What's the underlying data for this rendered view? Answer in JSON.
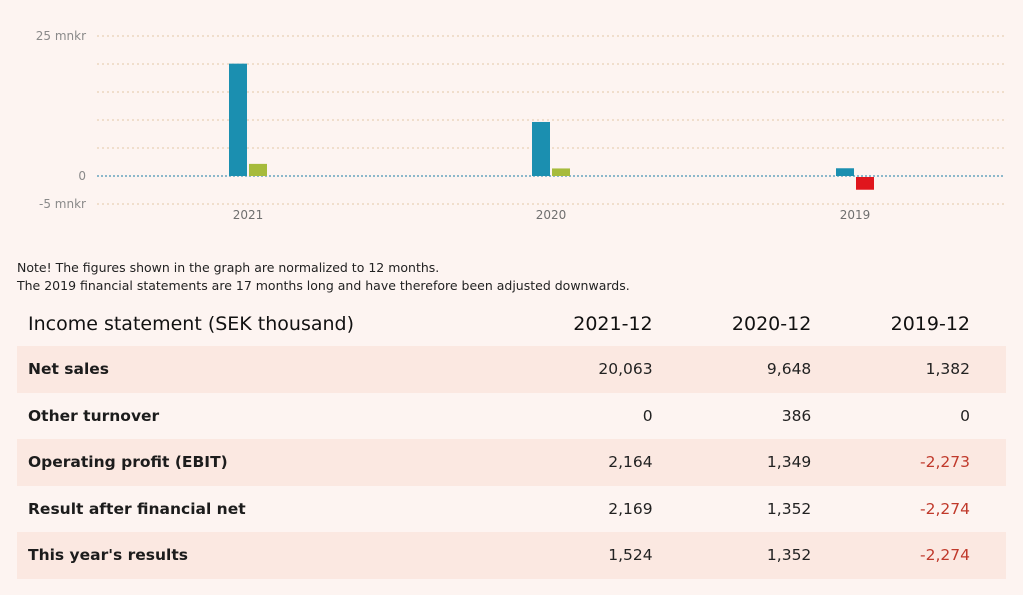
{
  "chart_data": {
    "type": "bar",
    "y_axis_labels": [
      "25 mnkr",
      "0",
      "-5 mnkr"
    ],
    "ylim": [
      -5,
      25
    ],
    "categories": [
      "2021",
      "2020",
      "2019"
    ],
    "series": [
      {
        "color": "#1b8fb0",
        "values": [
          20.063,
          9.648,
          1.382
        ]
      },
      {
        "color_positive": "#a6bb3c",
        "color_negative": "#e0161d",
        "values": [
          2.164,
          1.349,
          -2.273
        ]
      }
    ],
    "grid": true
  },
  "notes": [
    "Note! The figures shown in the graph are normalized to 12 months.",
    "The 2019 financial statements are 17 months long and have therefore been adjusted downwards."
  ],
  "table": {
    "title": "Income statement (SEK thousand)",
    "columns": [
      "2021-12",
      "2020-12",
      "2019-12"
    ],
    "rows": [
      {
        "label": "Net sales",
        "values": [
          "20,063",
          "9,648",
          "1,382"
        ]
      },
      {
        "label": "Other turnover",
        "values": [
          "0",
          "386",
          "0"
        ]
      },
      {
        "label": "Operating profit (EBIT)",
        "values": [
          "2,164",
          "1,349",
          "-2,273"
        ]
      },
      {
        "label": "Result after financial net",
        "values": [
          "2,169",
          "1,352",
          "-2,274"
        ]
      },
      {
        "label": "This year's results",
        "values": [
          "1,524",
          "1,352",
          "-2,274"
        ]
      }
    ]
  }
}
